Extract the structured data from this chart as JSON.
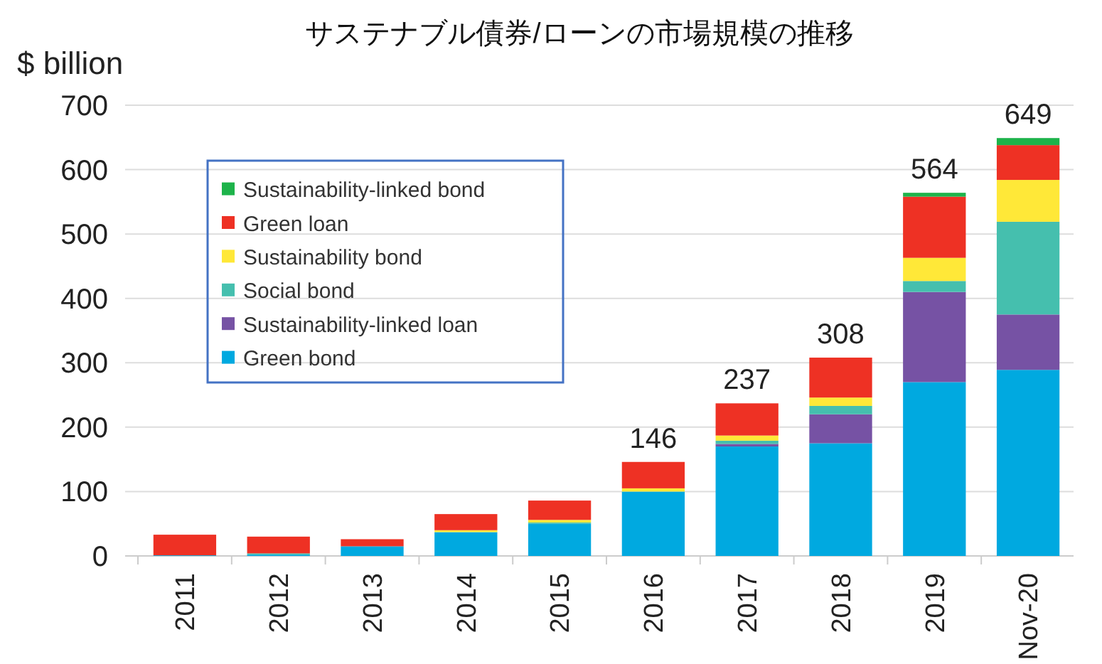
{
  "chart_data": {
    "type": "bar",
    "title": "サステナブル債券/ローンの市場規模の推移",
    "ylabel": "$ billion",
    "categories": [
      "2011",
      "2012",
      "2013",
      "2014",
      "2015",
      "2016",
      "2017",
      "2018",
      "2019",
      "Nov-20"
    ],
    "stacked": true,
    "ylim": [
      0,
      700
    ],
    "yticks": [
      0,
      100,
      200,
      300,
      400,
      500,
      600,
      700
    ],
    "grid": "y",
    "legend": "top left",
    "totals": [
      null,
      null,
      null,
      null,
      null,
      "146",
      "237",
      "308",
      "564",
      "649"
    ],
    "series": [
      {
        "name": "Green bond",
        "color": "#00a9e0",
        "values": [
          1,
          2,
          15,
          37,
          50,
          100,
          170,
          175,
          270,
          289
        ]
      },
      {
        "name": "Sustainability-linked loan",
        "color": "#7652a4",
        "values": [
          0,
          0,
          0,
          0,
          0,
          0,
          4,
          45,
          140,
          86
        ]
      },
      {
        "name": "Social bond",
        "color": "#45bfae",
        "values": [
          0,
          2,
          0,
          0,
          2,
          0,
          5,
          13,
          17,
          144
        ]
      },
      {
        "name": "Sustainability bond",
        "color": "#ffe838",
        "values": [
          0,
          0,
          0,
          3,
          4,
          5,
          8,
          13,
          36,
          65
        ]
      },
      {
        "name": "Green loan",
        "color": "#ee3124",
        "values": [
          32,
          26,
          11,
          25,
          30,
          41,
          50,
          62,
          95,
          54
        ]
      },
      {
        "name": "Sustainability-linked bond",
        "color": "#1db34a",
        "values": [
          0,
          0,
          0,
          0,
          0,
          0,
          0,
          0,
          6,
          11
        ]
      }
    ]
  }
}
